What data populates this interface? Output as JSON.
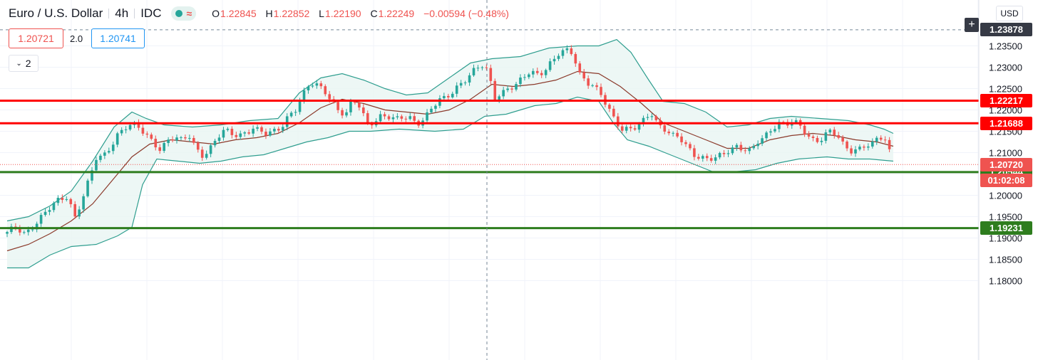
{
  "header": {
    "title": "Euro / U.S. Dollar",
    "interval": "4h",
    "source": "IDC",
    "indicator_wave": "≈",
    "ohlc": {
      "o_label": "O",
      "o": "1.22845",
      "h_label": "H",
      "h": "1.22852",
      "l_label": "L",
      "l": "1.22190",
      "c_label": "C",
      "c": "1.22249",
      "change": "−0.00594 (−0.48%)"
    }
  },
  "trade_panel": {
    "sell_price": "1.20721",
    "spread": "2.0",
    "buy_price": "1.20741"
  },
  "indicators_collapse": {
    "count": "2",
    "chevron": "⌄"
  },
  "price_axis": {
    "currency": "USD",
    "ticks": [
      "1.23500",
      "1.23000",
      "1.22500",
      "1.22000",
      "1.21500",
      "1.21000",
      "1.20500",
      "1.20000",
      "1.19500",
      "1.19000",
      "1.18500",
      "1.18000"
    ],
    "crosshair_price": "1.23878",
    "current_price": "1.20720",
    "countdown": "01:02:08",
    "crosshair_plus": "+"
  },
  "colors": {
    "up": "#26a69a",
    "down": "#ef5350",
    "bands": "#2f9e8f",
    "band_fill": "#e8f5f2",
    "basis": "#8b3a2b",
    "resistance": "#ff0000",
    "support": "#2e7d1e",
    "crosshair_tag": "#363a45",
    "current_tag": "#ef5350"
  },
  "chart_data": {
    "type": "candlestick",
    "symbol": "Euro / U.S. Dollar",
    "interval": "4h",
    "ylim": [
      1.1775,
      1.2405
    ],
    "grid": true,
    "series_legend": [],
    "horizontal_levels": [
      {
        "value": 1.22217,
        "label": "1.22217",
        "kind": "resistance",
        "color": "#ff0000"
      },
      {
        "value": 1.21688,
        "label": "1.21688",
        "kind": "resistance",
        "color": "#ff0000"
      },
      {
        "value": 1.20544,
        "label": "1.20544",
        "kind": "support",
        "color": "#2e7d1e"
      },
      {
        "value": 1.19231,
        "label": "1.19231",
        "kind": "support",
        "color": "#2e7d1e"
      }
    ],
    "current_price": 1.2072,
    "crosshair_price": 1.23878,
    "close_path": [
      [
        0,
        1.191
      ],
      [
        12,
        1.1925
      ],
      [
        25,
        1.1912
      ],
      [
        40,
        1.1935
      ],
      [
        55,
        1.196
      ],
      [
        70,
        1.1985
      ],
      [
        85,
        1.2
      ],
      [
        95,
        1.195
      ],
      [
        105,
        1.199
      ],
      [
        115,
        1.2035
      ],
      [
        125,
        1.2085
      ],
      [
        135,
        1.209
      ],
      [
        145,
        1.2115
      ],
      [
        155,
        1.2145
      ],
      [
        165,
        1.216
      ],
      [
        175,
        1.2165
      ],
      [
        185,
        1.2155
      ],
      [
        195,
        1.214
      ],
      [
        205,
        1.2125
      ],
      [
        215,
        1.211
      ],
      [
        225,
        1.213
      ],
      [
        235,
        1.2135
      ],
      [
        245,
        1.2125
      ],
      [
        255,
        1.214
      ],
      [
        265,
        1.211
      ],
      [
        275,
        1.2095
      ],
      [
        285,
        1.2112
      ],
      [
        295,
        1.2135
      ],
      [
        305,
        1.215
      ],
      [
        315,
        1.2142
      ],
      [
        325,
        1.214
      ],
      [
        335,
        1.215
      ],
      [
        345,
        1.216
      ],
      [
        355,
        1.215
      ],
      [
        365,
        1.214
      ],
      [
        375,
        1.2148
      ],
      [
        385,
        1.216
      ],
      [
        395,
        1.219
      ],
      [
        405,
        1.2205
      ],
      [
        415,
        1.2235
      ],
      [
        425,
        1.226
      ],
      [
        435,
        1.2255
      ],
      [
        445,
        1.2245
      ],
      [
        455,
        1.2225
      ],
      [
        465,
        1.22
      ],
      [
        475,
        1.219
      ],
      [
        485,
        1.222
      ],
      [
        495,
        1.2205
      ],
      [
        505,
        1.2165
      ],
      [
        515,
        1.2175
      ],
      [
        525,
        1.219
      ],
      [
        535,
        1.2185
      ],
      [
        545,
        1.2175
      ],
      [
        555,
        1.218
      ],
      [
        565,
        1.218
      ],
      [
        575,
        1.217
      ],
      [
        585,
        1.2182
      ],
      [
        595,
        1.2205
      ],
      [
        605,
        1.222
      ],
      [
        615,
        1.2225
      ],
      [
        625,
        1.224
      ],
      [
        635,
        1.2262
      ],
      [
        645,
        1.2278
      ],
      [
        655,
        1.2295
      ],
      [
        665,
        1.2305
      ],
      [
        675,
        1.2285
      ],
      [
        683,
        1.2225
      ],
      [
        693,
        1.2238
      ],
      [
        703,
        1.2255
      ],
      [
        713,
        1.226
      ],
      [
        723,
        1.2275
      ],
      [
        733,
        1.2285
      ],
      [
        743,
        1.228
      ],
      [
        753,
        1.229
      ],
      [
        763,
        1.2315
      ],
      [
        773,
        1.2335
      ],
      [
        783,
        1.234
      ],
      [
        793,
        1.233
      ],
      [
        803,
        1.228
      ],
      [
        813,
        1.2265
      ],
      [
        823,
        1.226
      ],
      [
        833,
        1.224
      ],
      [
        843,
        1.2205
      ],
      [
        853,
        1.217
      ],
      [
        863,
        1.215
      ],
      [
        873,
        1.2155
      ],
      [
        883,
        1.2165
      ],
      [
        893,
        1.218
      ],
      [
        903,
        1.2195
      ],
      [
        913,
        1.216
      ],
      [
        923,
        1.215
      ],
      [
        933,
        1.214
      ],
      [
        943,
        1.214
      ],
      [
        953,
        1.212
      ],
      [
        963,
        1.2095
      ],
      [
        973,
        1.2085
      ],
      [
        983,
        1.208
      ],
      [
        993,
        1.2088
      ],
      [
        1003,
        1.2098
      ],
      [
        1013,
        1.211
      ],
      [
        1023,
        1.2115
      ],
      [
        1033,
        1.2105
      ],
      [
        1043,
        1.21
      ],
      [
        1053,
        1.2125
      ],
      [
        1063,
        1.214
      ],
      [
        1073,
        1.216
      ],
      [
        1083,
        1.217
      ],
      [
        1093,
        1.2165
      ],
      [
        1103,
        1.217
      ],
      [
        1113,
        1.216
      ],
      [
        1123,
        1.214
      ],
      [
        1133,
        1.213
      ],
      [
        1143,
        1.2135
      ],
      [
        1153,
        1.215
      ],
      [
        1163,
        1.214
      ],
      [
        1173,
        1.2115
      ],
      [
        1183,
        1.2105
      ],
      [
        1193,
        1.211
      ],
      [
        1203,
        1.212
      ],
      [
        1213,
        1.2118
      ],
      [
        1223,
        1.2135
      ],
      [
        1233,
        1.2125
      ],
      [
        1243,
        1.2072
      ]
    ],
    "bollinger": {
      "upper": [
        [
          0,
          1.194
        ],
        [
          30,
          1.195
        ],
        [
          60,
          1.1975
        ],
        [
          90,
          1.201
        ],
        [
          120,
          1.208
        ],
        [
          150,
          1.216
        ],
        [
          175,
          1.2195
        ],
        [
          195,
          1.218
        ],
        [
          220,
          1.2165
        ],
        [
          260,
          1.216
        ],
        [
          300,
          1.2165
        ],
        [
          340,
          1.2175
        ],
        [
          380,
          1.218
        ],
        [
          410,
          1.224
        ],
        [
          440,
          1.2275
        ],
        [
          470,
          1.2285
        ],
        [
          500,
          1.227
        ],
        [
          530,
          1.225
        ],
        [
          560,
          1.2235
        ],
        [
          590,
          1.224
        ],
        [
          620,
          1.2275
        ],
        [
          650,
          1.231
        ],
        [
          680,
          1.232
        ],
        [
          720,
          1.2325
        ],
        [
          760,
          1.2345
        ],
        [
          800,
          1.235
        ],
        [
          830,
          1.235
        ],
        [
          855,
          1.2365
        ],
        [
          875,
          1.2335
        ],
        [
          900,
          1.227
        ],
        [
          920,
          1.222
        ],
        [
          950,
          1.2215
        ],
        [
          980,
          1.2195
        ],
        [
          1010,
          1.216
        ],
        [
          1040,
          1.2165
        ],
        [
          1070,
          1.218
        ],
        [
          1100,
          1.2185
        ],
        [
          1140,
          1.218
        ],
        [
          1180,
          1.2175
        ],
        [
          1210,
          1.2165
        ],
        [
          1230,
          1.2155
        ],
        [
          1243,
          1.2145
        ]
      ],
      "lower": [
        [
          0,
          1.183
        ],
        [
          30,
          1.183
        ],
        [
          60,
          1.186
        ],
        [
          90,
          1.188
        ],
        [
          125,
          1.1885
        ],
        [
          155,
          1.1905
        ],
        [
          175,
          1.1925
        ],
        [
          190,
          1.2025
        ],
        [
          210,
          1.2085
        ],
        [
          240,
          1.208
        ],
        [
          270,
          1.2075
        ],
        [
          300,
          1.208
        ],
        [
          330,
          1.209
        ],
        [
          360,
          1.2095
        ],
        [
          390,
          1.211
        ],
        [
          420,
          1.2125
        ],
        [
          450,
          1.2135
        ],
        [
          480,
          1.215
        ],
        [
          510,
          1.215
        ],
        [
          550,
          1.2155
        ],
        [
          600,
          1.215
        ],
        [
          640,
          1.2155
        ],
        [
          670,
          1.2185
        ],
        [
          700,
          1.219
        ],
        [
          740,
          1.221
        ],
        [
          770,
          1.2215
        ],
        [
          800,
          1.223
        ],
        [
          830,
          1.222
        ],
        [
          850,
          1.217
        ],
        [
          870,
          1.213
        ],
        [
          900,
          1.2115
        ],
        [
          930,
          1.2095
        ],
        [
          960,
          1.2075
        ],
        [
          990,
          1.2055
        ],
        [
          1020,
          1.2055
        ],
        [
          1050,
          1.206
        ],
        [
          1080,
          1.2075
        ],
        [
          1110,
          1.2085
        ],
        [
          1150,
          1.209
        ],
        [
          1180,
          1.2085
        ],
        [
          1210,
          1.2085
        ],
        [
          1243,
          1.208
        ]
      ],
      "basis": [
        [
          0,
          1.187
        ],
        [
          30,
          1.1885
        ],
        [
          60,
          1.191
        ],
        [
          90,
          1.194
        ],
        [
          120,
          1.198
        ],
        [
          150,
          1.204
        ],
        [
          175,
          1.209
        ],
        [
          200,
          1.212
        ],
        [
          230,
          1.213
        ],
        [
          260,
          1.2125
        ],
        [
          290,
          1.212
        ],
        [
          320,
          1.213
        ],
        [
          350,
          1.2135
        ],
        [
          380,
          1.2145
        ],
        [
          410,
          1.217
        ],
        [
          440,
          1.2205
        ],
        [
          470,
          1.2225
        ],
        [
          500,
          1.2215
        ],
        [
          530,
          1.22
        ],
        [
          560,
          1.2195
        ],
        [
          590,
          1.219
        ],
        [
          620,
          1.22
        ],
        [
          650,
          1.2225
        ],
        [
          680,
          1.226
        ],
        [
          710,
          1.2255
        ],
        [
          740,
          1.226
        ],
        [
          770,
          1.227
        ],
        [
          800,
          1.229
        ],
        [
          830,
          1.2285
        ],
        [
          860,
          1.2255
        ],
        [
          890,
          1.2215
        ],
        [
          920,
          1.217
        ],
        [
          950,
          1.215
        ],
        [
          980,
          1.213
        ],
        [
          1010,
          1.211
        ],
        [
          1040,
          1.211
        ],
        [
          1070,
          1.213
        ],
        [
          1100,
          1.214
        ],
        [
          1130,
          1.2145
        ],
        [
          1160,
          1.214
        ],
        [
          1190,
          1.213
        ],
        [
          1220,
          1.2125
        ],
        [
          1243,
          1.2115
        ]
      ]
    }
  }
}
